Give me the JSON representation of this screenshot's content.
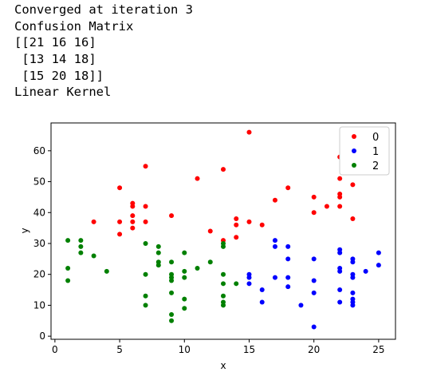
{
  "output": {
    "lines": [
      "Converged at iteration 3",
      "Confusion Matrix",
      "[[21 16 16]",
      " [13 14 18]",
      " [15 20 18]]",
      "Linear Kernel"
    ]
  },
  "chart_data": {
    "type": "scatter",
    "title": "",
    "xlabel": "x",
    "ylabel": "y",
    "xlim": [
      -0.3,
      26.3
    ],
    "ylim": [
      -1,
      69
    ],
    "xticks": [
      0,
      5,
      10,
      15,
      20,
      25
    ],
    "yticks": [
      0,
      10,
      20,
      30,
      40,
      50,
      60
    ],
    "grid": false,
    "legend_position": "top-right",
    "series": [
      {
        "name": "0",
        "color": "#ff0000",
        "points": [
          [
            3,
            37
          ],
          [
            5,
            48
          ],
          [
            5,
            37
          ],
          [
            5,
            33
          ],
          [
            6,
            43
          ],
          [
            6,
            42
          ],
          [
            6,
            39
          ],
          [
            6,
            37
          ],
          [
            6,
            35
          ],
          [
            7,
            55
          ],
          [
            7,
            42
          ],
          [
            7,
            37
          ],
          [
            9,
            39
          ],
          [
            11,
            51
          ],
          [
            12,
            34
          ],
          [
            13,
            54
          ],
          [
            13,
            31
          ],
          [
            14,
            38
          ],
          [
            14,
            36
          ],
          [
            14,
            32
          ],
          [
            15,
            66
          ],
          [
            15,
            37
          ],
          [
            16,
            36
          ],
          [
            17,
            44
          ],
          [
            18,
            48
          ],
          [
            20,
            45
          ],
          [
            20,
            40
          ],
          [
            21,
            42
          ],
          [
            22,
            58
          ],
          [
            22,
            51
          ],
          [
            22,
            46
          ],
          [
            22,
            45
          ],
          [
            22,
            42
          ],
          [
            23,
            49
          ],
          [
            23,
            38
          ]
        ]
      },
      {
        "name": "1",
        "color": "#0000ff",
        "points": [
          [
            15,
            20
          ],
          [
            15,
            19
          ],
          [
            15,
            17
          ],
          [
            16,
            15
          ],
          [
            16,
            11
          ],
          [
            17,
            31
          ],
          [
            17,
            29
          ],
          [
            17,
            19
          ],
          [
            18,
            29
          ],
          [
            18,
            25
          ],
          [
            18,
            19
          ],
          [
            18,
            16
          ],
          [
            19,
            10
          ],
          [
            20,
            25
          ],
          [
            20,
            18
          ],
          [
            20,
            14
          ],
          [
            20,
            3
          ],
          [
            22,
            28
          ],
          [
            22,
            27
          ],
          [
            22,
            22
          ],
          [
            22,
            21
          ],
          [
            22,
            15
          ],
          [
            22,
            11
          ],
          [
            23,
            25
          ],
          [
            23,
            24
          ],
          [
            23,
            20
          ],
          [
            23,
            19
          ],
          [
            23,
            14
          ],
          [
            23,
            12
          ],
          [
            23,
            11
          ],
          [
            23,
            10
          ],
          [
            24,
            21
          ],
          [
            25,
            27
          ],
          [
            25,
            23
          ]
        ]
      },
      {
        "name": "2",
        "color": "#008000",
        "points": [
          [
            1,
            31
          ],
          [
            1,
            22
          ],
          [
            1,
            18
          ],
          [
            2,
            31
          ],
          [
            2,
            29
          ],
          [
            2,
            27
          ],
          [
            3,
            26
          ],
          [
            4,
            21
          ],
          [
            7,
            30
          ],
          [
            7,
            20
          ],
          [
            7,
            13
          ],
          [
            7,
            10
          ],
          [
            8,
            29
          ],
          [
            8,
            27
          ],
          [
            8,
            24
          ],
          [
            8,
            23
          ],
          [
            9,
            24
          ],
          [
            9,
            20
          ],
          [
            9,
            19
          ],
          [
            9,
            18
          ],
          [
            9,
            14
          ],
          [
            9,
            7
          ],
          [
            9,
            5
          ],
          [
            10,
            27
          ],
          [
            10,
            21
          ],
          [
            10,
            19
          ],
          [
            10,
            12
          ],
          [
            10,
            9
          ],
          [
            11,
            22
          ],
          [
            12,
            24
          ],
          [
            13,
            30
          ],
          [
            13,
            29
          ],
          [
            13,
            20
          ],
          [
            13,
            17
          ],
          [
            13,
            13
          ],
          [
            13,
            11
          ],
          [
            13,
            10
          ],
          [
            14,
            17
          ]
        ]
      }
    ]
  }
}
